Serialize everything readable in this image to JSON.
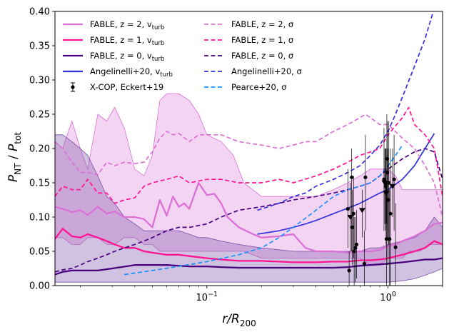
{
  "chart_data": {
    "type": "line",
    "xscale": "log",
    "xlim": [
      0.0145,
      2.0
    ],
    "ylim": [
      0.0,
      0.4
    ],
    "xlabel": "r/R",
    "xlabel_sub": "200",
    "ylabel_main": "P",
    "ylabel_sub": "NT",
    "ylabel_sep": " / ",
    "ylabel_main2": "P",
    "ylabel_sub2": "tot",
    "x_tick_labels": [
      {
        "x": 0.1,
        "base": "10",
        "exp": "−1"
      },
      {
        "x": 1.0,
        "base": "10",
        "exp": "0"
      }
    ],
    "y_ticks": [
      0.0,
      0.05,
      0.1,
      0.15,
      0.2,
      0.25,
      0.3,
      0.35,
      0.4
    ],
    "y_tick_labels": [
      "0.00",
      "0.05",
      "0.10",
      "0.15",
      "0.20",
      "0.25",
      "0.30",
      "0.35",
      "0.40"
    ],
    "legend": {
      "placement": "top",
      "entries": [
        {
          "label": "FABLE, z = 2, v",
          "sub": "turb",
          "color": "#da70d6",
          "style": "solid"
        },
        {
          "label": "FABLE, z = 1, v",
          "sub": "turb",
          "color": "#ff1493",
          "style": "solid"
        },
        {
          "label": "FABLE, z = 0, v",
          "sub": "turb",
          "color": "#4b0082",
          "style": "solid"
        },
        {
          "label": "Angelinelli+20, v",
          "sub": "turb",
          "color": "#3333dd",
          "style": "solid"
        },
        {
          "label": "X-COP, Eckert+19",
          "sub": "",
          "color": "#000000",
          "style": "errorbar"
        },
        {
          "label": "FABLE, z = 2, σ",
          "sub": "",
          "color": "#da70d6",
          "style": "dashed"
        },
        {
          "label": "FABLE, z = 1, σ",
          "sub": "",
          "color": "#ff1493",
          "style": "dashed"
        },
        {
          "label": "FABLE, z = 0, σ",
          "sub": "",
          "color": "#4b0082",
          "style": "dashed"
        },
        {
          "label": "Angelinelli+20, σ",
          "sub": "",
          "color": "#3333dd",
          "style": "dashed"
        },
        {
          "label": "Pearce+20, σ",
          "sub": "",
          "color": "#1e90ff",
          "style": "dashed"
        }
      ]
    },
    "bands": [
      {
        "name": "FABLE z=2 scatter",
        "color": "#da70d6",
        "opacity": 0.3,
        "x": [
          0.0145,
          0.016,
          0.018,
          0.02,
          0.022,
          0.025,
          0.028,
          0.031,
          0.035,
          0.04,
          0.045,
          0.05,
          0.055,
          0.06,
          0.07,
          0.08,
          0.09,
          0.1,
          0.12,
          0.14,
          0.16,
          0.2,
          0.25,
          0.3,
          0.35,
          0.4,
          0.5,
          0.6,
          0.7,
          0.8,
          0.9,
          1.0,
          1.1,
          1.2,
          1.3,
          1.5,
          1.7,
          2.0
        ],
        "upper": [
          0.21,
          0.2,
          0.24,
          0.2,
          0.17,
          0.25,
          0.24,
          0.26,
          0.23,
          0.17,
          0.16,
          0.19,
          0.27,
          0.28,
          0.28,
          0.27,
          0.25,
          0.22,
          0.21,
          0.19,
          0.15,
          0.13,
          0.13,
          0.13,
          0.13,
          0.13,
          0.14,
          0.15,
          0.16,
          0.17,
          0.17,
          0.17,
          0.16,
          0.14,
          0.14,
          0.14,
          0.14,
          0.14
        ],
        "lower": [
          0.07,
          0.07,
          0.06,
          0.06,
          0.07,
          0.07,
          0.06,
          0.06,
          0.07,
          0.07,
          0.06,
          0.06,
          0.05,
          0.05,
          0.05,
          0.05,
          0.05,
          0.05,
          0.05,
          0.05,
          0.05,
          0.04,
          0.04,
          0.04,
          0.04,
          0.04,
          0.04,
          0.04,
          0.04,
          0.03,
          0.03,
          0.04,
          0.04,
          0.04,
          0.05,
          0.05,
          0.06,
          0.06
        ]
      },
      {
        "name": "FABLE z=0 scatter",
        "color": "#7b4fa8",
        "opacity": 0.35,
        "x": [
          0.0145,
          0.016,
          0.018,
          0.02,
          0.022,
          0.025,
          0.028,
          0.031,
          0.035,
          0.04,
          0.045,
          0.05,
          0.06,
          0.07,
          0.08,
          0.09,
          0.1,
          0.12,
          0.15,
          0.2,
          0.3,
          0.4,
          0.5,
          0.6,
          0.7,
          0.8,
          0.9,
          1.0,
          1.2,
          1.4,
          1.6,
          1.8,
          2.0
        ],
        "upper": [
          0.22,
          0.22,
          0.21,
          0.2,
          0.19,
          0.16,
          0.13,
          0.12,
          0.1,
          0.09,
          0.08,
          0.08,
          0.08,
          0.08,
          0.075,
          0.07,
          0.07,
          0.065,
          0.06,
          0.055,
          0.05,
          0.05,
          0.05,
          0.05,
          0.05,
          0.055,
          0.055,
          0.06,
          0.065,
          0.07,
          0.08,
          0.1,
          0.085
        ],
        "lower": [
          0.005,
          0.005,
          0.005,
          0.005,
          0.005,
          0.005,
          0.005,
          0.005,
          0.005,
          0.005,
          0.005,
          0.005,
          0.005,
          0.005,
          0.005,
          0.005,
          0.005,
          0.005,
          0.005,
          0.005,
          0.005,
          0.005,
          0.005,
          0.005,
          0.005,
          0.005,
          0.005,
          0.005,
          0.007,
          0.01,
          0.015,
          0.02,
          0.025
        ]
      }
    ],
    "series": [
      {
        "name": "FABLE, z = 2, v_turb",
        "color": "#da70d6",
        "style": "solid",
        "width": 2.3,
        "x": [
          0.0145,
          0.016,
          0.018,
          0.02,
          0.022,
          0.025,
          0.028,
          0.031,
          0.035,
          0.04,
          0.045,
          0.05,
          0.055,
          0.06,
          0.065,
          0.07,
          0.075,
          0.08,
          0.09,
          0.1,
          0.11,
          0.12,
          0.13,
          0.15,
          0.18,
          0.2,
          0.25,
          0.3,
          0.35,
          0.4,
          0.5,
          0.6,
          0.7,
          0.8,
          0.9,
          1.0,
          1.1,
          1.2,
          1.4,
          1.6,
          1.8,
          2.0
        ],
        "y": [
          0.115,
          0.112,
          0.107,
          0.11,
          0.103,
          0.115,
          0.105,
          0.108,
          0.1,
          0.1,
          0.097,
          0.085,
          0.125,
          0.102,
          0.13,
          0.115,
          0.12,
          0.112,
          0.15,
          0.132,
          0.134,
          0.12,
          0.1,
          0.085,
          0.075,
          0.07,
          0.072,
          0.075,
          0.055,
          0.05,
          0.05,
          0.048,
          0.05,
          0.05,
          0.052,
          0.058,
          0.06,
          0.065,
          0.072,
          0.08,
          0.09,
          0.092
        ]
      },
      {
        "name": "FABLE, z = 1, v_turb",
        "color": "#ff1493",
        "style": "solid",
        "width": 2.3,
        "x": [
          0.0145,
          0.016,
          0.018,
          0.02,
          0.022,
          0.025,
          0.028,
          0.031,
          0.035,
          0.04,
          0.045,
          0.05,
          0.06,
          0.07,
          0.08,
          0.1,
          0.12,
          0.15,
          0.2,
          0.25,
          0.3,
          0.4,
          0.5,
          0.6,
          0.7,
          0.8,
          0.9,
          1.0,
          1.2,
          1.4,
          1.6,
          1.8,
          2.0
        ],
        "y": [
          0.068,
          0.083,
          0.072,
          0.07,
          0.075,
          0.07,
          0.065,
          0.06,
          0.055,
          0.055,
          0.05,
          0.048,
          0.045,
          0.045,
          0.043,
          0.04,
          0.038,
          0.036,
          0.036,
          0.035,
          0.034,
          0.034,
          0.035,
          0.035,
          0.037,
          0.037,
          0.038,
          0.04,
          0.045,
          0.05,
          0.055,
          0.065,
          0.06
        ]
      },
      {
        "name": "FABLE, z = 0, v_turb",
        "color": "#4b0082",
        "style": "solid",
        "width": 2.3,
        "x": [
          0.0145,
          0.016,
          0.018,
          0.02,
          0.025,
          0.03,
          0.04,
          0.05,
          0.06,
          0.08,
          0.1,
          0.12,
          0.15,
          0.2,
          0.3,
          0.4,
          0.5,
          0.6,
          0.7,
          0.8,
          0.9,
          1.0,
          1.2,
          1.4,
          1.6,
          1.8,
          2.0
        ],
        "y": [
          0.016,
          0.02,
          0.022,
          0.022,
          0.022,
          0.025,
          0.03,
          0.03,
          0.03,
          0.028,
          0.028,
          0.027,
          0.026,
          0.026,
          0.026,
          0.026,
          0.026,
          0.027,
          0.029,
          0.03,
          0.031,
          0.032,
          0.034,
          0.036,
          0.038,
          0.038,
          0.04
        ]
      },
      {
        "name": "Angelinelli+20, v_turb",
        "color": "#3333dd",
        "style": "solid",
        "width": 1.7,
        "x": [
          0.19,
          0.25,
          0.3,
          0.35,
          0.4,
          0.5,
          0.6,
          0.7,
          0.8,
          0.9,
          1.0,
          1.2,
          1.4,
          1.6,
          1.8
        ],
        "y": [
          0.075,
          0.08,
          0.085,
          0.09,
          0.095,
          0.105,
          0.113,
          0.12,
          0.128,
          0.135,
          0.14,
          0.155,
          0.175,
          0.2,
          0.222
        ]
      },
      {
        "name": "FABLE, z = 2, σ",
        "color": "#da70d6",
        "style": "dashed",
        "width": 1.7,
        "x": [
          0.0145,
          0.016,
          0.018,
          0.02,
          0.022,
          0.025,
          0.028,
          0.031,
          0.035,
          0.04,
          0.045,
          0.05,
          0.055,
          0.06,
          0.065,
          0.07,
          0.08,
          0.09,
          0.1,
          0.12,
          0.15,
          0.2,
          0.25,
          0.3,
          0.35,
          0.4,
          0.5,
          0.6,
          0.7,
          0.75,
          0.8,
          0.9,
          1.0,
          1.2,
          1.4,
          1.6,
          1.8,
          2.0
        ],
        "y": [
          0.21,
          0.2,
          0.18,
          0.165,
          0.165,
          0.162,
          0.18,
          0.175,
          0.18,
          0.178,
          0.18,
          0.195,
          0.215,
          0.225,
          0.22,
          0.222,
          0.21,
          0.22,
          0.22,
          0.22,
          0.21,
          0.205,
          0.2,
          0.205,
          0.21,
          0.21,
          0.225,
          0.235,
          0.245,
          0.25,
          0.245,
          0.235,
          0.235,
          0.215,
          0.2,
          0.175,
          0.15,
          0.1
        ]
      },
      {
        "name": "FABLE, z = 1, σ",
        "color": "#ff1493",
        "style": "dashed",
        "width": 1.7,
        "x": [
          0.0145,
          0.016,
          0.018,
          0.02,
          0.022,
          0.025,
          0.028,
          0.031,
          0.035,
          0.04,
          0.045,
          0.05,
          0.06,
          0.07,
          0.08,
          0.1,
          0.12,
          0.15,
          0.2,
          0.25,
          0.3,
          0.4,
          0.5,
          0.6,
          0.7,
          0.8,
          0.9,
          1.0,
          1.2,
          1.3,
          1.4,
          1.6,
          1.8,
          2.0
        ],
        "y": [
          0.13,
          0.145,
          0.14,
          0.14,
          0.155,
          0.135,
          0.135,
          0.12,
          0.125,
          0.128,
          0.145,
          0.15,
          0.155,
          0.16,
          0.15,
          0.155,
          0.155,
          0.15,
          0.15,
          0.155,
          0.15,
          0.16,
          0.17,
          0.18,
          0.19,
          0.195,
          0.2,
          0.22,
          0.245,
          0.26,
          0.235,
          0.22,
          0.2,
          0.13
        ]
      },
      {
        "name": "FABLE, z = 0, σ",
        "color": "#4b0082",
        "style": "dashed",
        "width": 1.7,
        "x": [
          0.0145,
          0.016,
          0.018,
          0.02,
          0.022,
          0.025,
          0.028,
          0.031,
          0.035,
          0.04,
          0.045,
          0.05,
          0.06,
          0.07,
          0.08,
          0.1,
          0.12,
          0.15,
          0.2,
          0.25,
          0.3,
          0.4,
          0.5,
          0.6,
          0.7,
          0.8,
          0.9,
          1.0,
          1.2,
          1.4,
          1.6,
          1.8,
          2.0
        ],
        "y": [
          0.02,
          0.023,
          0.025,
          0.03,
          0.035,
          0.04,
          0.045,
          0.05,
          0.055,
          0.06,
          0.065,
          0.07,
          0.08,
          0.085,
          0.085,
          0.09,
          0.1,
          0.11,
          0.115,
          0.12,
          0.125,
          0.13,
          0.135,
          0.14,
          0.145,
          0.15,
          0.16,
          0.17,
          0.185,
          0.195,
          0.2,
          0.195,
          0.155
        ]
      },
      {
        "name": "Angelinelli+20, σ",
        "color": "#3333dd",
        "style": "dashed",
        "width": 1.7,
        "x": [
          0.19,
          0.25,
          0.3,
          0.35,
          0.4,
          0.5,
          0.6,
          0.7,
          0.8,
          0.9,
          1.0,
          1.1,
          1.2,
          1.4,
          1.6,
          1.8
        ],
        "y": [
          0.11,
          0.12,
          0.13,
          0.135,
          0.145,
          0.155,
          0.165,
          0.175,
          0.19,
          0.205,
          0.225,
          0.25,
          0.275,
          0.32,
          0.36,
          0.405
        ]
      },
      {
        "name": "Pearce+20, σ",
        "color": "#1e90ff",
        "style": "dashed",
        "width": 1.7,
        "x": [
          0.035,
          0.05,
          0.07,
          0.1,
          0.15,
          0.2,
          0.25,
          0.3,
          0.4,
          0.5,
          0.6,
          0.7,
          0.8,
          0.9,
          1.0,
          1.1,
          1.2
        ],
        "y": [
          0.016,
          0.022,
          0.028,
          0.035,
          0.045,
          0.055,
          0.07,
          0.085,
          0.11,
          0.13,
          0.14,
          0.145,
          0.15,
          0.16,
          0.175,
          0.19,
          0.205
        ]
      }
    ],
    "xcop_points": [
      {
        "x": 0.6,
        "y": 0.112,
        "lo": 0.055,
        "hi": 0.17,
        "ul": false
      },
      {
        "x": 0.61,
        "y": 0.022,
        "lo": 0.0,
        "hi": 0.05,
        "ul": false
      },
      {
        "x": 0.62,
        "y": 0.1,
        "lo": 0.05,
        "hi": 0.15,
        "ul": true
      },
      {
        "x": 0.63,
        "y": 0.158,
        "lo": 0.05,
        "hi": 0.2,
        "ul": false
      },
      {
        "x": 0.635,
        "y": 0.085,
        "lo": 0.03,
        "hi": 0.14,
        "ul": false
      },
      {
        "x": 0.645,
        "y": 0.105,
        "lo": 0.04,
        "hi": 0.16,
        "ul": false
      },
      {
        "x": 0.65,
        "y": 0.05,
        "lo": 0.0,
        "hi": 0.1,
        "ul": false
      },
      {
        "x": 0.66,
        "y": 0.055,
        "lo": 0.005,
        "hi": 0.1,
        "ul": false
      },
      {
        "x": 0.67,
        "y": 0.06,
        "lo": 0.01,
        "hi": 0.11,
        "ul": false
      },
      {
        "x": 0.72,
        "y": 0.11,
        "lo": 0.07,
        "hi": 0.14,
        "ul": true
      },
      {
        "x": 0.74,
        "y": 0.032,
        "lo": 0.0,
        "hi": 0.08,
        "ul": false
      },
      {
        "x": 0.75,
        "y": 0.158,
        "lo": 0.08,
        "hi": 0.22,
        "ul": false
      },
      {
        "x": 0.95,
        "y": 0.155,
        "lo": 0.08,
        "hi": 0.23,
        "ul": false
      },
      {
        "x": 0.96,
        "y": 0.15,
        "lo": 0.09,
        "hi": 0.2,
        "ul": true
      },
      {
        "x": 0.97,
        "y": 0.145,
        "lo": 0.08,
        "hi": 0.2,
        "ul": false
      },
      {
        "x": 0.975,
        "y": 0.135,
        "lo": 0.06,
        "hi": 0.2,
        "ul": true
      },
      {
        "x": 0.98,
        "y": 0.068,
        "lo": 0.0,
        "hi": 0.15,
        "ul": false
      },
      {
        "x": 0.985,
        "y": 0.185,
        "lo": 0.09,
        "hi": 0.25,
        "ul": false
      },
      {
        "x": 0.99,
        "y": 0.165,
        "lo": 0.07,
        "hi": 0.24,
        "ul": false
      },
      {
        "x": 1.0,
        "y": 0.125,
        "lo": 0.03,
        "hi": 0.2,
        "ul": false
      },
      {
        "x": 1.01,
        "y": 0.15,
        "lo": 0.06,
        "hi": 0.24,
        "ul": false
      },
      {
        "x": 1.02,
        "y": 0.068,
        "lo": 0.0,
        "hi": 0.14,
        "ul": false
      },
      {
        "x": 1.03,
        "y": 0.105,
        "lo": 0.0,
        "hi": 0.2,
        "ul": false
      },
      {
        "x": 1.06,
        "y": 0.145,
        "lo": 0.1,
        "hi": 0.2,
        "ul": true
      },
      {
        "x": 1.08,
        "y": 0.155,
        "lo": 0.08,
        "hi": 0.22,
        "ul": false
      },
      {
        "x": 1.1,
        "y": 0.056,
        "lo": 0.0,
        "hi": 0.12,
        "ul": false
      }
    ]
  }
}
